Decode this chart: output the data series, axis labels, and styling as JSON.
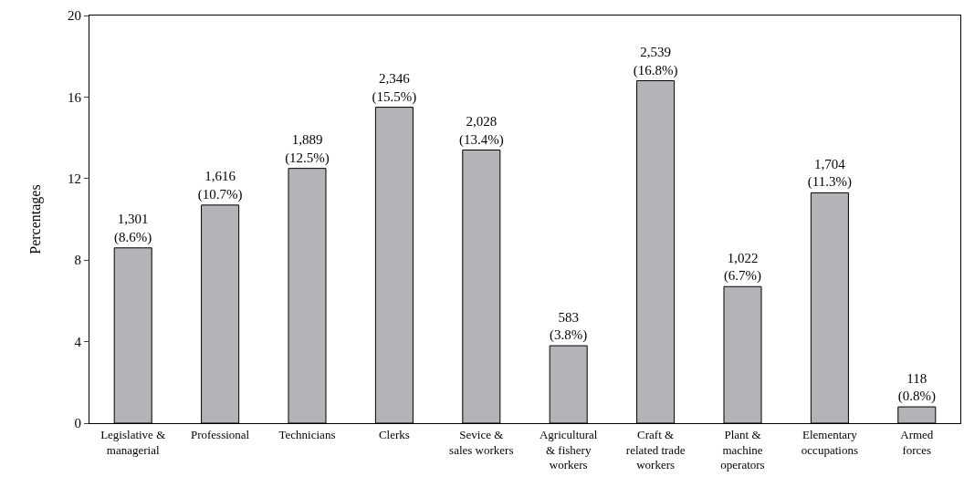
{
  "chart_data": {
    "type": "bar",
    "ylabel": "Percentages",
    "categories": [
      "Legislative &\nmanagerial",
      "Professional",
      "Technicians",
      "Clerks",
      "Sevice &\nsales workers",
      "Agricultural\n& fishery\nworkers",
      "Craft &\nrelated trade\nworkers",
      "Plant &\nmachine\noperators",
      "Elementary\noccupations",
      "Armed\nforces"
    ],
    "values": [
      8.6,
      10.7,
      12.5,
      15.5,
      13.4,
      3.8,
      16.8,
      6.7,
      11.3,
      0.8
    ],
    "value_labels": [
      "1,301\n(8.6%)",
      "1,616\n(10.7%)",
      "1,889\n(12.5%)",
      "2,346\n(15.5%)",
      "2,028\n(13.4%)",
      "583\n(3.8%)",
      "2,539\n(16.8%)",
      "1,022\n(6.7%)",
      "1,704\n(11.3%)",
      "118\n(0.8%)"
    ],
    "color": "#b3b3b8",
    "ylim": [
      0,
      20
    ],
    "yticks": [
      0,
      4,
      8,
      12,
      16,
      20
    ]
  }
}
